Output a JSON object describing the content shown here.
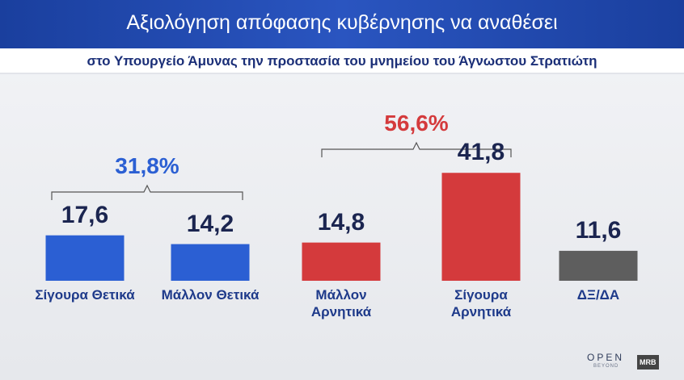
{
  "chart_data": {
    "type": "bar",
    "title": "Αξιολόγηση απόφασης κυβέρνησης να αναθέσει",
    "subtitle": "στο Υπουργείο Άμυνας την προστασία του μνημείου του Άγνωστου Στρατιώτη",
    "categories": [
      "Σίγουρα Θετικά",
      "Μάλλον Θετικά",
      "Μάλλον Αρνητικά",
      "Σίγουρα Αρνητικά",
      "ΔΞ/ΔΑ"
    ],
    "values": [
      17.6,
      14.2,
      14.8,
      41.8,
      11.6
    ],
    "value_labels": [
      "17,6",
      "14,2",
      "14,8",
      "41,8",
      "11,6"
    ],
    "colors": [
      "#2b5fd3",
      "#2b5fd3",
      "#d43a3c",
      "#d43a3c",
      "#5e5e5e"
    ],
    "ylim": [
      0,
      50
    ],
    "annotations": [
      {
        "text": "31,8%",
        "color": "#2b5fd3"
      },
      {
        "text": "56,6%",
        "color": "#d43a3c"
      }
    ],
    "logos": [
      "OPEN",
      "BEYOND",
      "MRB"
    ]
  }
}
